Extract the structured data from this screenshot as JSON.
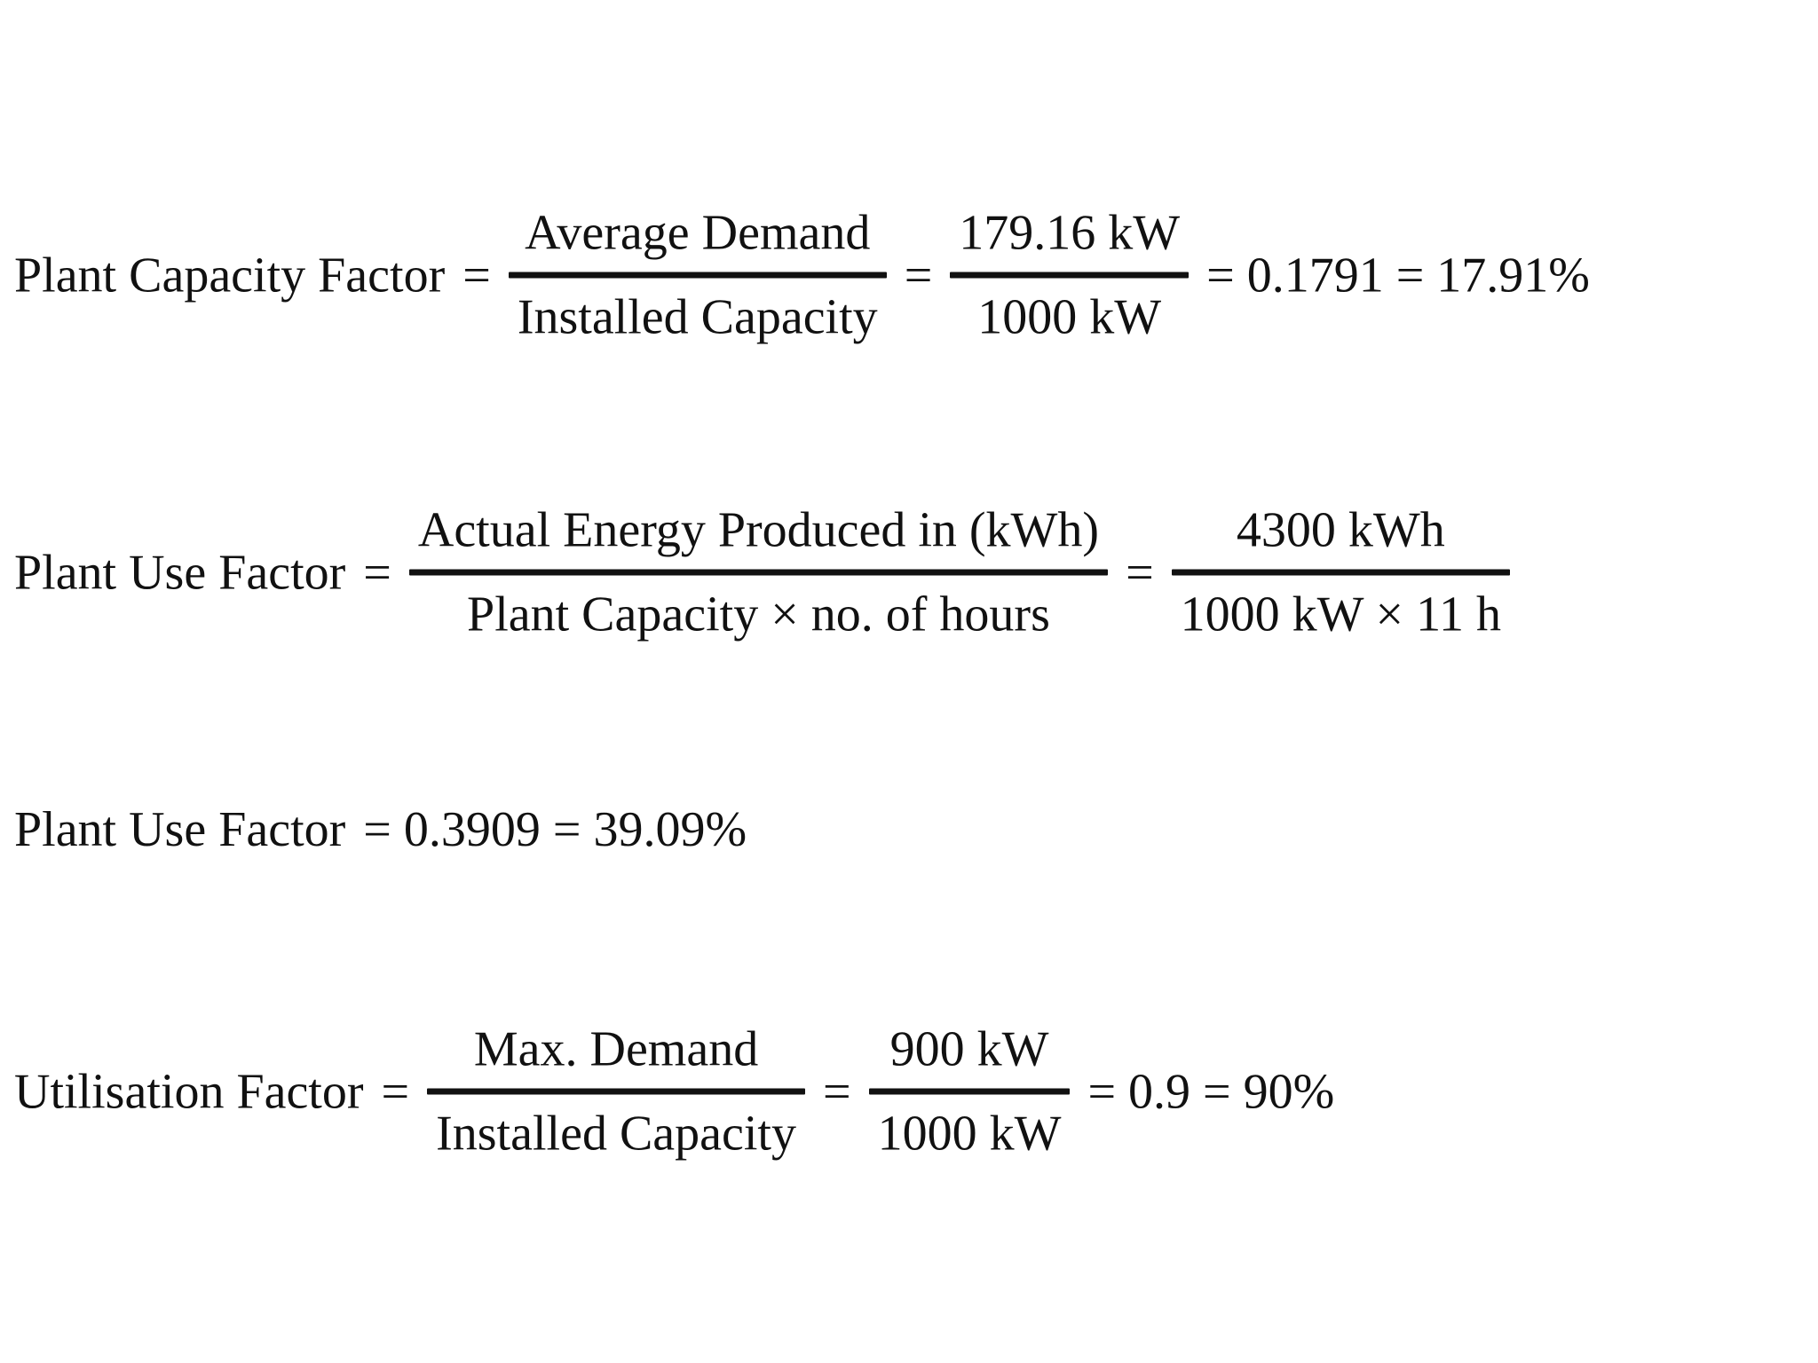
{
  "document": {
    "background": "#ffffff",
    "ink": "#111111",
    "description": "Worked example formulas for power plant performance factors"
  },
  "symbols": {
    "equals": "="
  },
  "equations": [
    {
      "id": "plant-capacity-factor",
      "label": "Plant Capacity Factor",
      "definition_fraction": {
        "numerator": "Average Demand",
        "denominator": "Installed Capacity"
      },
      "values_fraction": {
        "numerator": "179.16 kW",
        "denominator": "1000 kW"
      },
      "result": "= 0.1791 = 17.91%"
    },
    {
      "id": "plant-use-factor",
      "label": "Plant Use Factor",
      "definition_fraction": {
        "numerator": "Actual Energy Produced in (kWh)",
        "denominator": "Plant Capacity × no. of hours"
      },
      "values_fraction": {
        "numerator": "4300 kWh",
        "denominator": "1000 kW × 11 h"
      },
      "result": ""
    },
    {
      "id": "plant-use-factor-result",
      "label": "Plant Use Factor",
      "result": "= 0.3909 = 39.09%"
    },
    {
      "id": "utilisation-factor",
      "label": "Utilisation Factor",
      "definition_fraction": {
        "numerator": "Max. Demand",
        "denominator": "Installed Capacity"
      },
      "values_fraction": {
        "numerator": "900 kW",
        "denominator": "1000 kW"
      },
      "result": "= 0.9 = 90%"
    }
  ]
}
